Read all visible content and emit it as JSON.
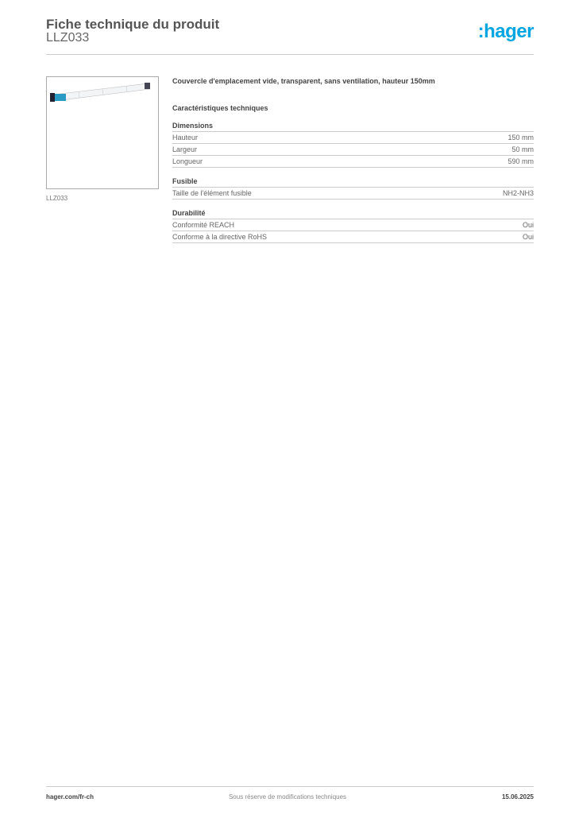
{
  "header": {
    "title": "Fiche technique du produit",
    "reference": "LLZ033",
    "logo": ":hager"
  },
  "product": {
    "image_caption": "LLZ033",
    "description": "Couvercle d'emplacement vide, transparent, sans ventilation, hauteur 150mm"
  },
  "specs": {
    "heading": "Caractéristiques techniques",
    "sections": [
      {
        "title": "Dimensions",
        "rows": [
          {
            "label": "Hauteur",
            "value": "150 mm"
          },
          {
            "label": "Largeur",
            "value": "50 mm"
          },
          {
            "label": "Longueur",
            "value": "590 mm"
          }
        ]
      },
      {
        "title": "Fusible",
        "rows": [
          {
            "label": "Taille de l'élément fusible",
            "value": "NH2-NH3"
          }
        ]
      },
      {
        "title": "Durabilité",
        "rows": [
          {
            "label": "Conformité REACH",
            "value": "Oui"
          },
          {
            "label": "Conforme à la directive RoHS",
            "value": "Oui"
          }
        ]
      }
    ]
  },
  "footer": {
    "website": "hager.com/fr-ch",
    "disclaimer": "Sous réserve de modifications techniques",
    "date": "15.06.2025"
  },
  "colors": {
    "brand": "#00a6e2"
  }
}
